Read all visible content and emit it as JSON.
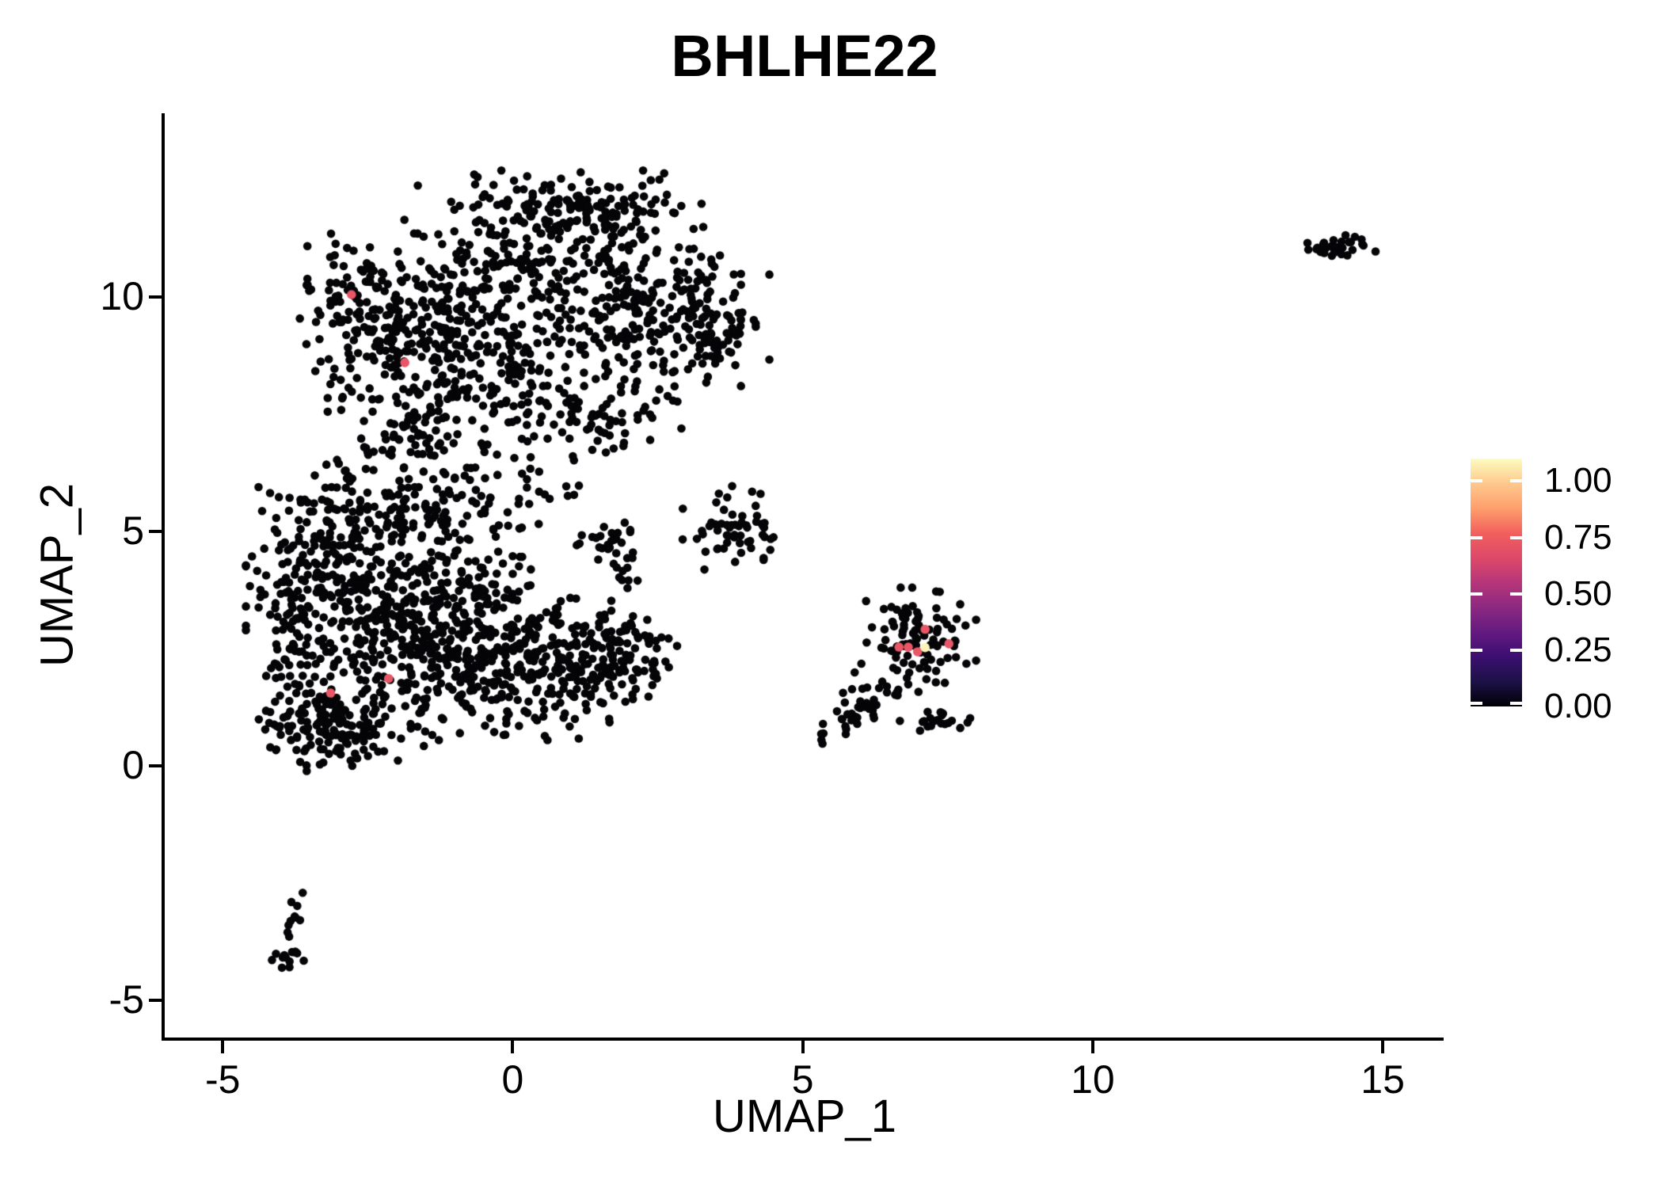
{
  "title": "BHLHE22",
  "axes": {
    "x_label": "UMAP_1",
    "y_label": "UMAP_2",
    "x_ticks": [
      -5,
      0,
      5,
      10,
      15
    ],
    "y_ticks": [
      -5,
      0,
      5,
      10
    ],
    "x_range": [
      -6.0,
      16.05
    ],
    "y_range": [
      -5.8,
      13.92
    ]
  },
  "legend": {
    "tick_labels": [
      "1.00",
      "0.75",
      "0.50",
      "0.25",
      "0.00"
    ],
    "tick_values": [
      1.0,
      0.75,
      0.5,
      0.25,
      0.0
    ],
    "value_range": [
      0,
      1.1
    ],
    "colormap": "magma",
    "gradient_stops_bottom_to_top": [
      "#000004",
      "#1D1147",
      "#3B0F70",
      "#641A80",
      "#8C2981",
      "#B63679",
      "#DE4968",
      "#F1605D",
      "#FE9F6D",
      "#FEC98D",
      "#FCFDBF"
    ]
  },
  "chart_data": {
    "type": "scatter",
    "title": "BHLHE22",
    "xlabel": "UMAP_1",
    "ylabel": "UMAP_2",
    "xlim": [
      -6.0,
      16.05
    ],
    "ylim": [
      -5.8,
      13.92
    ],
    "grid": false,
    "legend_position": "right",
    "point_color_default": "#050508",
    "point_radius_px": 5.3,
    "seed": 42,
    "clusters": [
      {
        "name": "upper-main",
        "cx": 0.6,
        "cy": 10.4,
        "sx": 1.45,
        "sy": 1.0,
        "n": 380
      },
      {
        "name": "upper-left-lobe",
        "cx": -1.7,
        "cy": 9.4,
        "sx": 0.8,
        "sy": 0.85,
        "n": 200
      },
      {
        "name": "upper-top-ridge",
        "cx": 1.1,
        "cy": 11.8,
        "sx": 0.95,
        "sy": 0.35,
        "n": 110
      },
      {
        "name": "upper-right-lobe",
        "cx": 2.7,
        "cy": 9.4,
        "sx": 0.75,
        "sy": 0.7,
        "n": 130
      },
      {
        "name": "upper-left-arm",
        "cx": -2.75,
        "cy": 9.7,
        "sx": 0.4,
        "sy": 0.75,
        "n": 70
      },
      {
        "name": "upper-lower-band",
        "cx": -0.2,
        "cy": 8.0,
        "sx": 1.3,
        "sy": 0.55,
        "n": 130
      },
      {
        "name": "upper-right-spur",
        "cx": 1.5,
        "cy": 7.4,
        "sx": 0.65,
        "sy": 0.45,
        "n": 40
      },
      {
        "name": "upper-right-tip",
        "cx": 3.5,
        "cy": 9.3,
        "sx": 0.3,
        "sy": 0.45,
        "n": 40
      },
      {
        "name": "neck-upper",
        "cx": -1.9,
        "cy": 6.9,
        "sx": 0.5,
        "sy": 0.5,
        "n": 50
      },
      {
        "name": "lower-core-left",
        "cx": -2.3,
        "cy": 3.3,
        "sx": 1.0,
        "sy": 1.15,
        "n": 420
      },
      {
        "name": "lower-core-right",
        "cx": -0.6,
        "cy": 2.5,
        "sx": 1.0,
        "sy": 0.85,
        "n": 300
      },
      {
        "name": "lower-upleft-arm",
        "cx": -3.2,
        "cy": 4.8,
        "sx": 0.5,
        "sy": 0.75,
        "n": 100
      },
      {
        "name": "lower-right-ext",
        "cx": 0.9,
        "cy": 2.2,
        "sx": 0.8,
        "sy": 0.6,
        "n": 140
      },
      {
        "name": "lower-botleft",
        "cx": -3.4,
        "cy": 1.0,
        "sx": 0.45,
        "sy": 0.45,
        "n": 80
      },
      {
        "name": "neck-lower",
        "cx": -1.5,
        "cy": 5.5,
        "sx": 0.85,
        "sy": 0.6,
        "n": 110
      },
      {
        "name": "lower-beak",
        "cx": 1.85,
        "cy": 2.4,
        "sx": 0.5,
        "sy": 0.45,
        "n": 70
      },
      {
        "name": "bridge-clump",
        "cx": 1.6,
        "cy": 4.7,
        "sx": 0.3,
        "sy": 0.26,
        "n": 28
      },
      {
        "name": "lower-left-edge",
        "cx": -3.9,
        "cy": 2.8,
        "sx": 0.22,
        "sy": 0.85,
        "n": 45
      },
      {
        "name": "lower-bottom-edge",
        "cx": -2.8,
        "cy": 0.55,
        "sx": 0.6,
        "sy": 0.3,
        "n": 60
      },
      {
        "name": "neck-sparse",
        "cx": -0.1,
        "cy": 6.3,
        "sx": 0.8,
        "sy": 0.6,
        "n": 40
      },
      {
        "name": "stray-pair",
        "cx": 1.95,
        "cy": 3.95,
        "sx": 0.16,
        "sy": 0.2,
        "n": 8
      },
      {
        "name": "mid-cluster",
        "cx": 3.85,
        "cy": 5.0,
        "sx": 0.4,
        "sy": 0.42,
        "n": 58
      },
      {
        "name": "right-main",
        "cx": 7.0,
        "cy": 2.65,
        "sx": 0.43,
        "sy": 0.5,
        "n": 105
      },
      {
        "name": "right-tail",
        "type": "strand",
        "x1": 5.25,
        "y1": 0.5,
        "x2": 6.3,
        "y2": 1.45,
        "jitter": 0.13,
        "n": 30
      },
      {
        "name": "right-subblob",
        "cx": 7.45,
        "cy": 0.95,
        "sx": 0.27,
        "sy": 0.13,
        "n": 20
      },
      {
        "name": "right-mid-sparse",
        "cx": 6.35,
        "cy": 1.6,
        "sx": 0.3,
        "sy": 0.28,
        "n": 12
      },
      {
        "name": "topright-cluster",
        "cx": 14.2,
        "cy": 11.05,
        "sx": 0.3,
        "sy": 0.12,
        "n": 30
      },
      {
        "name": "botleft-strand",
        "type": "strand",
        "x1": -3.67,
        "y1": -2.85,
        "x2": -3.88,
        "y2": -3.65,
        "jitter": 0.09,
        "n": 10
      },
      {
        "name": "botleft-bulge",
        "cx": -3.92,
        "cy": -4.05,
        "sx": 0.15,
        "sy": 0.28,
        "n": 14
      }
    ],
    "highlighted_points": [
      {
        "x": -2.78,
        "y": 10.05,
        "value": 0.6,
        "color": "#E95767"
      },
      {
        "x": -1.86,
        "y": 8.6,
        "value": 0.6,
        "color": "#E95767"
      },
      {
        "x": -3.14,
        "y": 1.55,
        "value": 0.6,
        "color": "#E95767"
      },
      {
        "x": -2.14,
        "y": 1.86,
        "value": 0.6,
        "color": "#E95767"
      },
      {
        "x": 6.66,
        "y": 2.53,
        "value": 0.6,
        "color": "#E95767"
      },
      {
        "x": 6.82,
        "y": 2.53,
        "value": 0.6,
        "color": "#E95767"
      },
      {
        "x": 6.98,
        "y": 2.43,
        "value": 0.6,
        "color": "#E95767"
      },
      {
        "x": 7.11,
        "y": 2.91,
        "value": 0.6,
        "color": "#E95767"
      },
      {
        "x": 7.52,
        "y": 2.6,
        "value": 0.6,
        "color": "#E95767"
      },
      {
        "x": 7.11,
        "y": 2.52,
        "value": 1.0,
        "color": "#FBF3B7"
      }
    ]
  }
}
